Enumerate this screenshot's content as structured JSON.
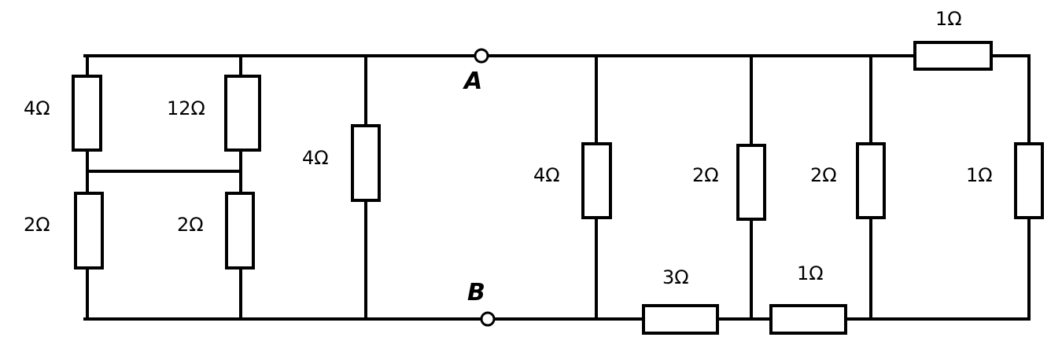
{
  "diagram": {
    "terminals": {
      "a": "A",
      "b": "B"
    },
    "resistors": {
      "r_left_top": "4Ω",
      "r_left_bottom": "2Ω",
      "r_mid_top": "12Ω",
      "r_mid_bottom": "2Ω",
      "r_ab_left": "4Ω",
      "r_ab_right": "4Ω",
      "r_bottom_a": "3Ω",
      "r_vert_c": "2Ω",
      "r_bottom_b": "1Ω",
      "r_vert_d": "2Ω",
      "r_top_right": "1Ω",
      "r_vert_e": "1Ω"
    },
    "colors": {
      "stroke": "#000000",
      "background": "#ffffff"
    }
  }
}
